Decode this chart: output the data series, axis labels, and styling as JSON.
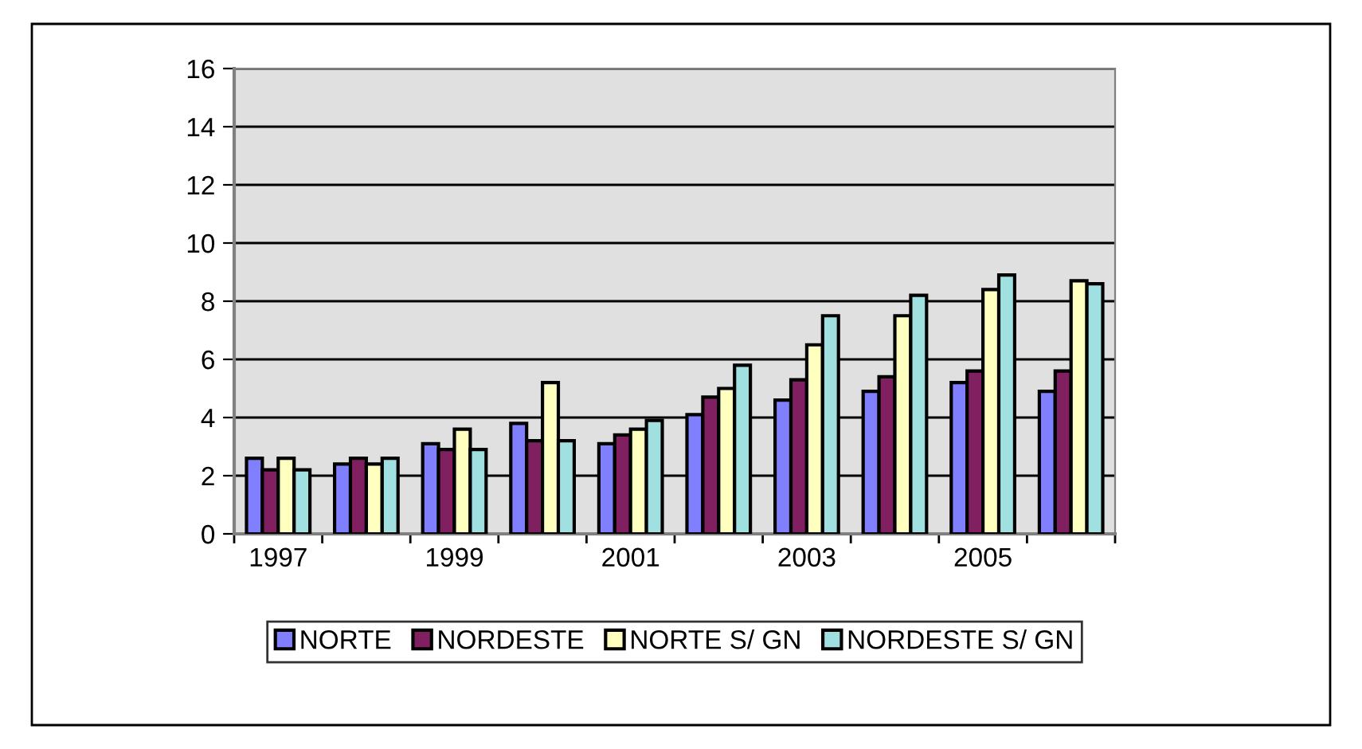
{
  "chart_data": {
    "type": "bar",
    "categories": [
      "1997",
      null,
      "1999",
      null,
      "2001",
      null,
      "2003",
      null,
      "2005",
      null
    ],
    "series": [
      {
        "name": "NORTE",
        "color": "#8080ff",
        "values": [
          2.6,
          2.4,
          3.1,
          3.8,
          3.1,
          4.1,
          4.6,
          4.9,
          5.2,
          4.9
        ]
      },
      {
        "name": "NORDESTE",
        "color": "#802060",
        "values": [
          2.2,
          2.6,
          2.9,
          3.2,
          3.4,
          4.7,
          5.3,
          5.4,
          5.6,
          5.6
        ]
      },
      {
        "name": "NORTE S/ GN",
        "color": "#ffffc0",
        "values": [
          2.6,
          2.4,
          3.6,
          5.2,
          3.6,
          5.0,
          6.5,
          7.5,
          8.4,
          8.7
        ]
      },
      {
        "name": "NORDESTE S/ GN",
        "color": "#a0e0e0",
        "values": [
          2.2,
          2.6,
          2.9,
          3.2,
          3.9,
          5.8,
          7.5,
          8.2,
          8.9,
          8.6
        ]
      }
    ],
    "ylim": [
      0,
      16
    ],
    "yticks": [
      0,
      2,
      4,
      6,
      8,
      10,
      12,
      14,
      16
    ],
    "grid": "y",
    "legend": "bottom"
  }
}
